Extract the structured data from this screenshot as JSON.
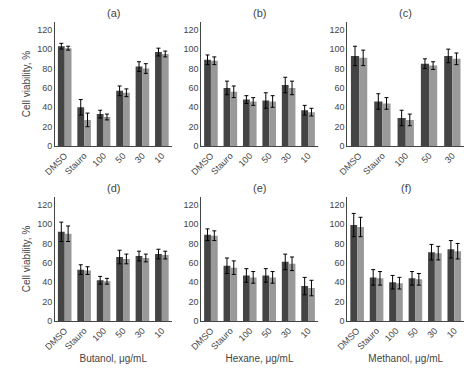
{
  "chart_data": [
    {
      "type": "bar",
      "title": "(a)",
      "ylabel": "Cell viability, %",
      "categories": [
        "DMSO",
        "Stauro",
        "100",
        "50",
        "30",
        "10"
      ],
      "series": [
        {
          "color": "#444444",
          "values": [
            103,
            40,
            33,
            57,
            82,
            97
          ],
          "errors": [
            3,
            8,
            4,
            5,
            5,
            4
          ]
        },
        {
          "color": "#999999",
          "values": [
            101,
            27,
            30,
            55,
            80,
            95
          ],
          "errors": [
            2,
            7,
            3,
            4,
            5,
            3
          ]
        }
      ],
      "ylim": [
        0,
        128
      ],
      "yticks": [
        0,
        20,
        40,
        60,
        80,
        100,
        120
      ],
      "grid": false
    },
    {
      "type": "bar",
      "title": "(b)",
      "categories": [
        "DMSO",
        "Stauro",
        "100",
        "50",
        "30",
        "10"
      ],
      "series": [
        {
          "color": "#444444",
          "values": [
            89,
            60,
            48,
            47,
            63,
            37
          ],
          "errors": [
            5,
            7,
            4,
            8,
            8,
            5
          ]
        },
        {
          "color": "#999999",
          "values": [
            88,
            56,
            46,
            46,
            60,
            35
          ],
          "errors": [
            4,
            6,
            4,
            6,
            7,
            4
          ]
        }
      ],
      "ylim": [
        0,
        128
      ],
      "yticks": [
        0,
        20,
        40,
        60,
        80,
        100,
        120
      ],
      "grid": false
    },
    {
      "type": "bar",
      "title": "(c)",
      "categories": [
        "DMSO",
        "Stauro",
        "100",
        "50",
        "30"
      ],
      "series": [
        {
          "color": "#444444",
          "values": [
            93,
            46,
            29,
            85,
            93
          ],
          "errors": [
            10,
            8,
            8,
            5,
            7
          ]
        },
        {
          "color": "#999999",
          "values": [
            91,
            44,
            27,
            83,
            90
          ],
          "errors": [
            8,
            6,
            6,
            4,
            6
          ]
        }
      ],
      "ylim": [
        0,
        128
      ],
      "yticks": [
        0,
        20,
        40,
        60,
        80,
        100,
        120
      ],
      "grid": false
    },
    {
      "type": "bar",
      "title": "(d)",
      "xlabel": "Butanol, μg/mL",
      "ylabel": "Cell viability, %",
      "categories": [
        "DMSO",
        "Stauro",
        "100",
        "50",
        "30",
        "10"
      ],
      "series": [
        {
          "color": "#444444",
          "values": [
            92,
            53,
            42,
            66,
            67,
            69
          ],
          "errors": [
            10,
            5,
            4,
            7,
            5,
            5
          ]
        },
        {
          "color": "#999999",
          "values": [
            90,
            52,
            41,
            64,
            65,
            68
          ],
          "errors": [
            8,
            4,
            3,
            5,
            4,
            4
          ]
        }
      ],
      "ylim": [
        0,
        128
      ],
      "yticks": [
        0,
        20,
        40,
        60,
        80,
        100,
        120
      ],
      "grid": false
    },
    {
      "type": "bar",
      "title": "(e)",
      "xlabel": "Hexane, μg/mL",
      "categories": [
        "DMSO",
        "Stauro",
        "100",
        "50",
        "30",
        "10"
      ],
      "series": [
        {
          "color": "#444444",
          "values": [
            89,
            57,
            47,
            47,
            61,
            36
          ],
          "errors": [
            6,
            8,
            7,
            7,
            8,
            9
          ]
        },
        {
          "color": "#999999",
          "values": [
            88,
            55,
            45,
            45,
            59,
            34
          ],
          "errors": [
            5,
            7,
            6,
            6,
            7,
            8
          ]
        }
      ],
      "ylim": [
        0,
        128
      ],
      "yticks": [
        0,
        20,
        40,
        60,
        80,
        100,
        120
      ],
      "grid": false
    },
    {
      "type": "bar",
      "title": "(f)",
      "xlabel": "Methanol, μg/mL",
      "categories": [
        "DMSO",
        "Stauro",
        "100",
        "50",
        "30",
        "10"
      ],
      "series": [
        {
          "color": "#444444",
          "values": [
            99,
            45,
            40,
            44,
            71,
            74
          ],
          "errors": [
            12,
            8,
            7,
            7,
            8,
            9
          ]
        },
        {
          "color": "#999999",
          "values": [
            97,
            44,
            39,
            43,
            70,
            72
          ],
          "errors": [
            10,
            7,
            6,
            6,
            7,
            8
          ]
        }
      ],
      "ylim": [
        0,
        128
      ],
      "yticks": [
        0,
        20,
        40,
        60,
        80,
        100,
        120
      ],
      "grid": false
    }
  ]
}
